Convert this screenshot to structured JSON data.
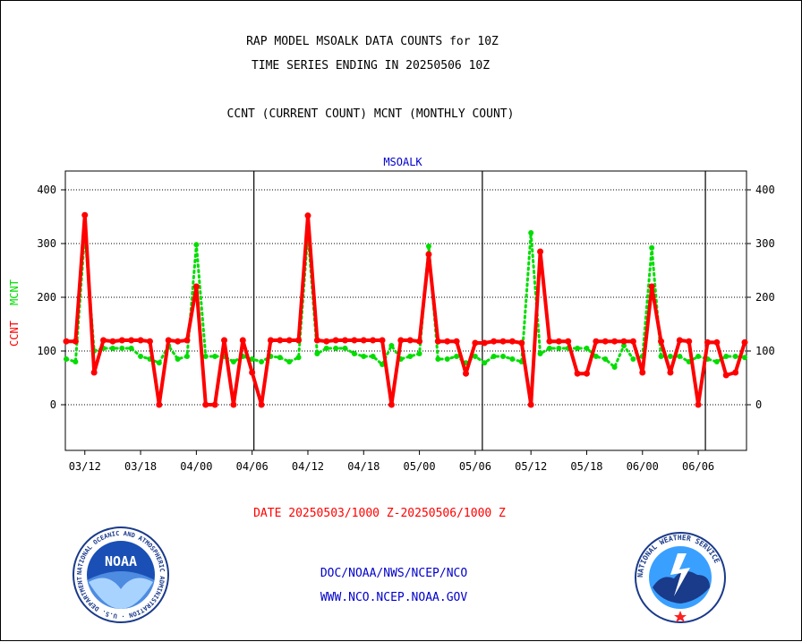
{
  "header": {
    "title_line1": "RAP MODEL MSOALK DATA COUNTS for 10Z",
    "title_line2": "TIME SERIES ENDING IN 20250506 10Z",
    "subtitle": "CCNT (CURRENT COUNT) MCNT (MONTHLY COUNT)"
  },
  "footer": {
    "date_range": "DATE 20250503/1000 Z-20250506/1000 Z",
    "credit_line1": "DOC/NOAA/NWS/NCEP/NCO",
    "credit_line2": "WWW.NCO.NCEP.NOAA.GOV"
  },
  "logos": {
    "noaa": "NOAA",
    "noaa_ring": "NATIONAL OCEANIC AND ATMOSPHERIC ADMINISTRATION · U.S. DEPARTMENT OF COMMERCE",
    "nws_ring": "NATIONAL WEATHER SERVICE"
  },
  "chart_data": {
    "type": "line",
    "title": "MSOALK",
    "ylabel_ccnt": "CCNT",
    "ylabel_mcnt": "MCNT",
    "ylim": [
      -85,
      435
    ],
    "yticks": [
      0,
      100,
      200,
      300,
      400
    ],
    "grid": true,
    "xticks": [
      {
        "index": 2,
        "label": "03/12"
      },
      {
        "index": 8,
        "label": "03/18"
      },
      {
        "index": 14,
        "label": "04/00"
      },
      {
        "index": 20,
        "label": "04/06"
      },
      {
        "index": 26,
        "label": "04/12"
      },
      {
        "index": 32,
        "label": "04/18"
      },
      {
        "index": 38,
        "label": "05/00"
      },
      {
        "index": 44,
        "label": "05/06"
      },
      {
        "index": 50,
        "label": "05/12"
      },
      {
        "index": 56,
        "label": "05/18"
      },
      {
        "index": 62,
        "label": "06/00"
      },
      {
        "index": 68,
        "label": "06/06"
      }
    ],
    "day_boundaries": [
      20,
      44,
      68
    ],
    "series": [
      {
        "name": "CCNT",
        "color": "#ff0000",
        "values": [
          118,
          118,
          353,
          60,
          120,
          118,
          120,
          120,
          120,
          118,
          0,
          120,
          118,
          120,
          220,
          0,
          0,
          120,
          0,
          120,
          60,
          0,
          120,
          120,
          120,
          120,
          352,
          120,
          118,
          120,
          120,
          120,
          120,
          120,
          120,
          0,
          120,
          120,
          118,
          280,
          118,
          118,
          118,
          58,
          115,
          115,
          118,
          118,
          118,
          115,
          0,
          285,
          118,
          118,
          118,
          58,
          58,
          118,
          118,
          118,
          118,
          118,
          60,
          220,
          118,
          60,
          120,
          118,
          0,
          116,
          116,
          55,
          60,
          116
        ]
      },
      {
        "name": "MCNT",
        "color": "#00dd00",
        "values": [
          85,
          80,
          320,
          100,
          105,
          105,
          105,
          105,
          90,
          85,
          78,
          110,
          85,
          90,
          298,
          90,
          90,
          90,
          80,
          90,
          85,
          80,
          90,
          88,
          80,
          88,
          320,
          95,
          105,
          105,
          105,
          95,
          90,
          90,
          75,
          110,
          85,
          90,
          95,
          295,
          85,
          85,
          90,
          78,
          90,
          78,
          90,
          90,
          85,
          80,
          320,
          95,
          105,
          105,
          105,
          105,
          105,
          90,
          85,
          70,
          110,
          85,
          90,
          292,
          90,
          90,
          90,
          80,
          90,
          85,
          80,
          90,
          90,
          88
        ]
      }
    ]
  }
}
